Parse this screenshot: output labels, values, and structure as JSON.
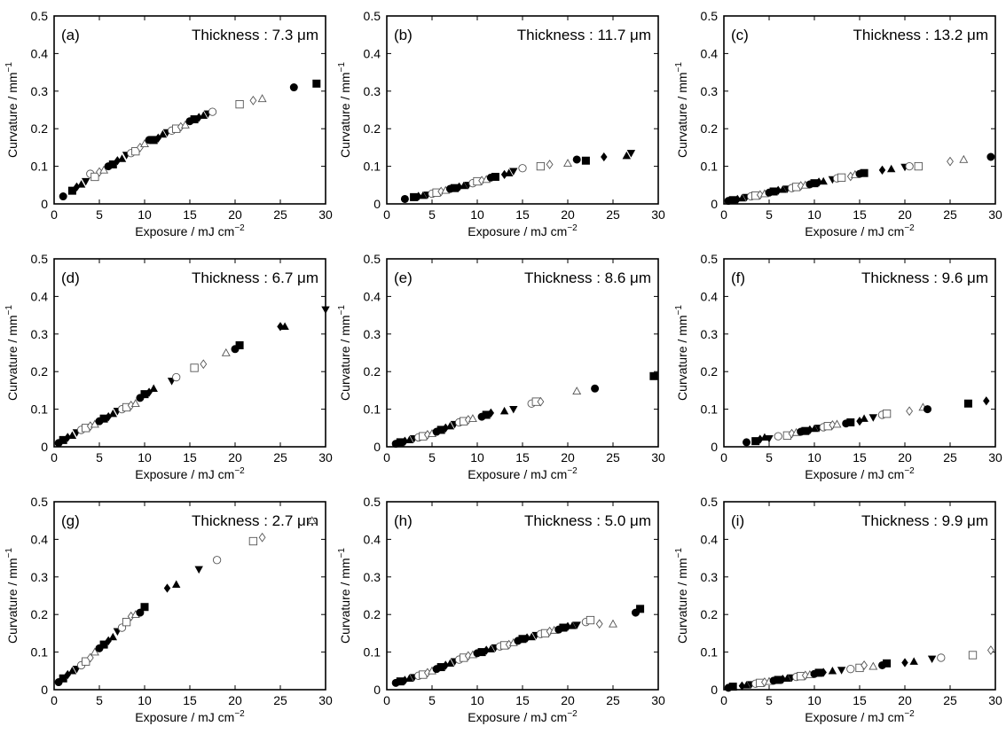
{
  "figure": {
    "xlabel": "Exposure / mJ cm",
    "xlabel_sup": "−2",
    "ylabel": "Curvature / mm",
    "ylabel_sup": "−1"
  },
  "chart_data": [
    {
      "type": "scatter",
      "panel": "(a)",
      "title": "Thickness : 7.3 μm",
      "xlim": [
        0,
        30
      ],
      "ylim": [
        0,
        0.5
      ],
      "xticks": [
        "0",
        "5",
        "10",
        "15",
        "20",
        "25",
        "30"
      ],
      "yticks": [
        "0",
        "0.1",
        "0.2",
        "0.3",
        "0.4",
        "0.5"
      ],
      "x": [
        1,
        2,
        2.5,
        3,
        3.5,
        4,
        4.5,
        5,
        5.5,
        6,
        6.5,
        7,
        7.5,
        8,
        8.5,
        9,
        9.5,
        10,
        10.5,
        11,
        11.5,
        12,
        12.5,
        13,
        13.5,
        14,
        14.5,
        15,
        15.5,
        16,
        16.5,
        17,
        17.5,
        20.5,
        22,
        23,
        26.5,
        29
      ],
      "y": [
        0.02,
        0.035,
        0.045,
        0.052,
        0.06,
        0.08,
        0.072,
        0.085,
        0.09,
        0.1,
        0.105,
        0.115,
        0.12,
        0.13,
        0.135,
        0.14,
        0.15,
        0.16,
        0.17,
        0.17,
        0.175,
        0.185,
        0.19,
        0.195,
        0.2,
        0.205,
        0.21,
        0.22,
        0.225,
        0.23,
        0.235,
        0.24,
        0.245,
        0.265,
        0.275,
        0.28,
        0.31,
        0.32
      ]
    },
    {
      "type": "scatter",
      "panel": "(b)",
      "title": "Thickness : 11.7 μm",
      "xlim": [
        0,
        30
      ],
      "ylim": [
        0,
        0.5
      ],
      "xticks": [
        "0",
        "5",
        "10",
        "15",
        "20",
        "25",
        "30"
      ],
      "yticks": [
        "0",
        "0.1",
        "0.2",
        "0.3",
        "0.4",
        "0.5"
      ],
      "x": [
        2,
        3,
        3.5,
        4,
        4.5,
        5,
        5.5,
        6,
        6.5,
        7,
        7.5,
        8,
        8.5,
        9,
        9.5,
        10,
        10.5,
        11,
        11.5,
        12,
        13,
        13.5,
        14,
        15,
        17,
        18,
        20,
        21,
        22,
        24,
        26.5,
        27
      ],
      "y": [
        0.013,
        0.018,
        0.02,
        0.022,
        0.024,
        0.027,
        0.03,
        0.033,
        0.036,
        0.04,
        0.042,
        0.045,
        0.048,
        0.05,
        0.055,
        0.06,
        0.062,
        0.065,
        0.07,
        0.072,
        0.078,
        0.082,
        0.087,
        0.095,
        0.1,
        0.105,
        0.108,
        0.118,
        0.115,
        0.125,
        0.128,
        0.135
      ]
    },
    {
      "type": "scatter",
      "panel": "(c)",
      "title": "Thickness : 13.2 μm",
      "xlim": [
        0,
        30
      ],
      "ylim": [
        0,
        0.5
      ],
      "xticks": [
        "0",
        "5",
        "10",
        "15",
        "20",
        "25",
        "30"
      ],
      "yticks": [
        "0",
        "0.1",
        "0.2",
        "0.3",
        "0.4",
        "0.5"
      ],
      "x": [
        0.5,
        1,
        1.5,
        2,
        2.5,
        3,
        3.5,
        4,
        4.5,
        5,
        5.5,
        6,
        6.5,
        7,
        7.5,
        8,
        8.5,
        9,
        9.5,
        10,
        10.5,
        11,
        12,
        12.5,
        13,
        14,
        14.5,
        15,
        15.5,
        17.5,
        18.5,
        20,
        20.5,
        21.5,
        25,
        26.5,
        29.5
      ],
      "y": [
        0.008,
        0.01,
        0.012,
        0.015,
        0.018,
        0.02,
        0.022,
        0.024,
        0.027,
        0.03,
        0.033,
        0.036,
        0.038,
        0.04,
        0.042,
        0.045,
        0.048,
        0.05,
        0.052,
        0.055,
        0.058,
        0.06,
        0.065,
        0.068,
        0.07,
        0.073,
        0.078,
        0.08,
        0.082,
        0.09,
        0.093,
        0.098,
        0.1,
        0.1,
        0.113,
        0.118,
        0.125
      ]
    },
    {
      "type": "scatter",
      "panel": "(d)",
      "title": "Thickness : 6.7 μm",
      "xlim": [
        0,
        30
      ],
      "ylim": [
        0,
        0.5
      ],
      "xticks": [
        "0",
        "5",
        "10",
        "15",
        "20",
        "25",
        "30"
      ],
      "yticks": [
        "0",
        "0.1",
        "0.2",
        "0.3",
        "0.4",
        "0.5"
      ],
      "x": [
        0.5,
        1,
        1.5,
        2,
        2.5,
        3,
        3.5,
        4,
        4.5,
        5,
        5.5,
        6,
        6.5,
        7,
        7.5,
        8,
        8.5,
        9,
        9.5,
        10,
        10.5,
        11,
        13,
        13.5,
        15.5,
        16.5,
        19,
        20,
        20.5,
        25,
        25.5,
        30
      ],
      "y": [
        0.01,
        0.018,
        0.025,
        0.03,
        0.038,
        0.045,
        0.05,
        0.055,
        0.06,
        0.068,
        0.075,
        0.08,
        0.088,
        0.095,
        0.1,
        0.105,
        0.11,
        0.115,
        0.13,
        0.14,
        0.145,
        0.155,
        0.175,
        0.185,
        0.21,
        0.22,
        0.25,
        0.26,
        0.27,
        0.32,
        0.32,
        0.365
      ]
    },
    {
      "type": "scatter",
      "panel": "(e)",
      "title": "Thickness : 8.6 μm",
      "xlim": [
        0,
        30
      ],
      "ylim": [
        0,
        0.5
      ],
      "xticks": [
        "0",
        "5",
        "10",
        "15",
        "20",
        "25",
        "30"
      ],
      "yticks": [
        "0",
        "0.1",
        "0.2",
        "0.3",
        "0.4",
        "0.5"
      ],
      "x": [
        1,
        1.5,
        2,
        2.5,
        3,
        3.5,
        4,
        4.5,
        5,
        5.5,
        6,
        6.5,
        7,
        7.5,
        8,
        8.5,
        9,
        9.5,
        10.5,
        11,
        11.5,
        13,
        14,
        16,
        16.5,
        17,
        21,
        23,
        29.5
      ],
      "y": [
        0.008,
        0.012,
        0.015,
        0.018,
        0.022,
        0.025,
        0.028,
        0.032,
        0.035,
        0.04,
        0.045,
        0.05,
        0.055,
        0.06,
        0.065,
        0.068,
        0.072,
        0.075,
        0.08,
        0.085,
        0.09,
        0.095,
        0.1,
        0.115,
        0.12,
        0.12,
        0.148,
        0.155,
        0.188
      ]
    },
    {
      "type": "scatter",
      "panel": "(f)",
      "title": "Thickness : 9.6 μm",
      "xlim": [
        0,
        30
      ],
      "ylim": [
        0,
        0.5
      ],
      "xticks": [
        "0",
        "5",
        "10",
        "15",
        "20",
        "25",
        "30"
      ],
      "yticks": [
        "0",
        "0.1",
        "0.2",
        "0.3",
        "0.4",
        "0.5"
      ],
      "x": [
        2.5,
        3.5,
        4,
        4.5,
        5,
        6,
        7,
        7.5,
        8,
        8.5,
        9,
        9.5,
        10,
        10.5,
        11,
        11.5,
        12,
        12.5,
        13.5,
        14,
        15,
        15.5,
        16.5,
        17.5,
        18,
        20.5,
        22,
        22.5,
        27,
        29
      ],
      "y": [
        0.012,
        0.015,
        0.02,
        0.025,
        0.022,
        0.028,
        0.03,
        0.035,
        0.038,
        0.04,
        0.042,
        0.045,
        0.048,
        0.05,
        0.052,
        0.055,
        0.058,
        0.06,
        0.062,
        0.065,
        0.068,
        0.075,
        0.078,
        0.085,
        0.088,
        0.095,
        0.105,
        0.1,
        0.115,
        0.122
      ]
    },
    {
      "type": "scatter",
      "panel": "(g)",
      "title": "Thickness : 2.7 μm",
      "xlim": [
        0,
        30
      ],
      "ylim": [
        0,
        0.5
      ],
      "xticks": [
        "0",
        "5",
        "10",
        "15",
        "20",
        "25",
        "30"
      ],
      "yticks": [
        "0",
        "0.1",
        "0.2",
        "0.3",
        "0.4",
        "0.5"
      ],
      "x": [
        0.5,
        1,
        1.5,
        2,
        2.5,
        3,
        3.5,
        4,
        4.5,
        5,
        5.5,
        6,
        6.5,
        7,
        7.5,
        8,
        8.5,
        9,
        9.5,
        10,
        12.5,
        13.5,
        16,
        18,
        22,
        23,
        28.5
      ],
      "y": [
        0.02,
        0.03,
        0.04,
        0.05,
        0.055,
        0.065,
        0.075,
        0.085,
        0.1,
        0.11,
        0.12,
        0.13,
        0.14,
        0.155,
        0.165,
        0.18,
        0.195,
        0.2,
        0.205,
        0.22,
        0.27,
        0.28,
        0.32,
        0.345,
        0.395,
        0.405,
        0.45
      ]
    },
    {
      "type": "scatter",
      "panel": "(h)",
      "title": "Thickness : 5.0 μm",
      "xlim": [
        0,
        30
      ],
      "ylim": [
        0,
        0.5
      ],
      "xticks": [
        "0",
        "5",
        "10",
        "15",
        "20",
        "25",
        "30"
      ],
      "yticks": [
        "0",
        "0.1",
        "0.2",
        "0.3",
        "0.4",
        "0.5"
      ],
      "x": [
        1,
        1.5,
        2,
        2.5,
        3,
        3.5,
        4,
        4.5,
        5,
        5.5,
        6,
        6.5,
        7,
        7.5,
        8,
        8.5,
        9,
        9.5,
        10,
        10.5,
        11,
        11.5,
        12,
        12.5,
        13,
        13.5,
        14,
        14.5,
        15,
        15.5,
        16,
        16.5,
        17,
        17.5,
        18,
        18.5,
        19,
        19.5,
        20,
        20.5,
        21,
        22,
        22.5,
        23.5,
        25,
        27.5,
        28
      ],
      "y": [
        0.018,
        0.022,
        0.025,
        0.03,
        0.033,
        0.037,
        0.04,
        0.045,
        0.05,
        0.055,
        0.06,
        0.065,
        0.07,
        0.075,
        0.08,
        0.085,
        0.09,
        0.093,
        0.097,
        0.1,
        0.105,
        0.108,
        0.112,
        0.115,
        0.118,
        0.12,
        0.125,
        0.13,
        0.135,
        0.138,
        0.14,
        0.145,
        0.148,
        0.15,
        0.155,
        0.158,
        0.16,
        0.165,
        0.168,
        0.17,
        0.172,
        0.18,
        0.185,
        0.175,
        0.175,
        0.205,
        0.215
      ]
    },
    {
      "type": "scatter",
      "panel": "(i)",
      "title": "Thickness : 9.9 μm",
      "xlim": [
        0,
        30
      ],
      "ylim": [
        0,
        0.5
      ],
      "xticks": [
        "0",
        "5",
        "10",
        "15",
        "20",
        "25",
        "30"
      ],
      "yticks": [
        "0",
        "0.1",
        "0.2",
        "0.3",
        "0.4",
        "0.5"
      ],
      "x": [
        0.5,
        1,
        2,
        2.5,
        3,
        3.5,
        4,
        4.5,
        5,
        5.5,
        6,
        6.5,
        7,
        7.5,
        8,
        8.5,
        9,
        9.5,
        10,
        10.5,
        11,
        12,
        13,
        14,
        15,
        15.5,
        16.5,
        17.5,
        18,
        20,
        21,
        23,
        24,
        27.5,
        29.5
      ],
      "y": [
        0.005,
        0.008,
        0.01,
        0.012,
        0.014,
        0.016,
        0.018,
        0.02,
        0.022,
        0.024,
        0.026,
        0.028,
        0.03,
        0.032,
        0.034,
        0.036,
        0.038,
        0.04,
        0.042,
        0.045,
        0.046,
        0.05,
        0.052,
        0.055,
        0.058,
        0.065,
        0.062,
        0.065,
        0.07,
        0.072,
        0.075,
        0.082,
        0.085,
        0.092,
        0.105
      ]
    }
  ]
}
